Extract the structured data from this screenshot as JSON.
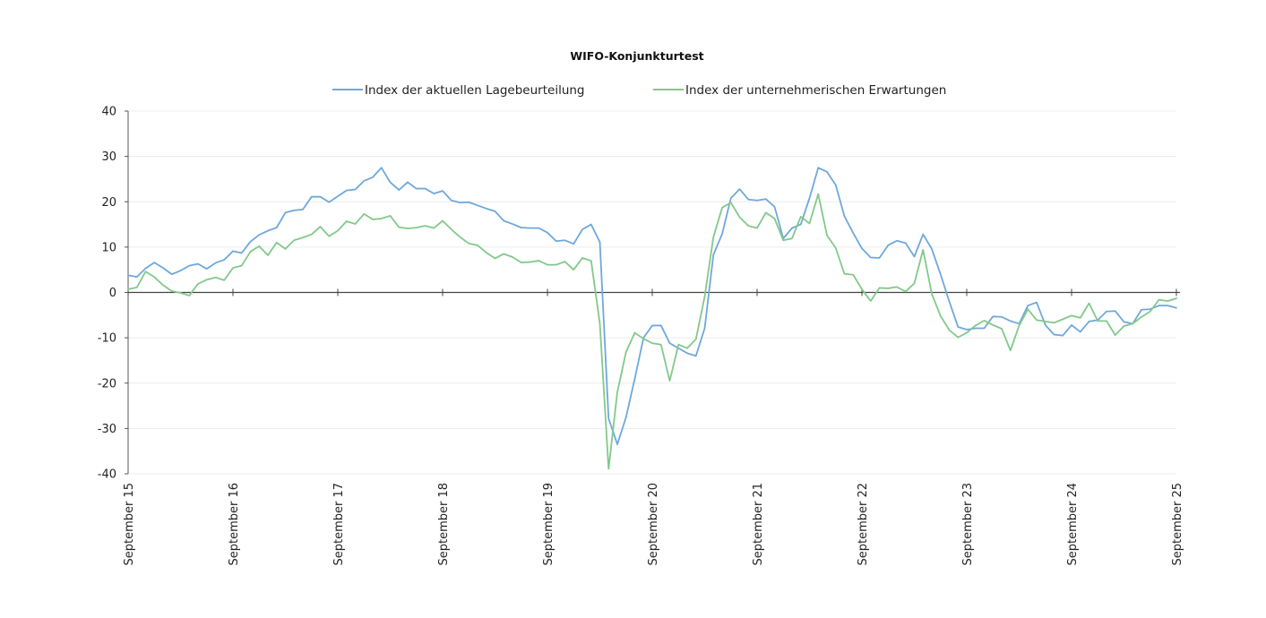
{
  "chart_data": {
    "type": "line",
    "title": "WIFO-Konjunkturtest",
    "xlabel": "",
    "ylabel": "",
    "ylim": [
      -40,
      40
    ],
    "yticks": [
      -40,
      -30,
      -20,
      -10,
      0,
      10,
      20,
      30,
      40
    ],
    "x_tick_labels": [
      "September 15",
      "September 16",
      "September 17",
      "September 18",
      "September 19",
      "September 20",
      "September 21",
      "September 22",
      "September 23",
      "September 24",
      "September 25"
    ],
    "x_tick_months": [
      0,
      12,
      24,
      36,
      48,
      60,
      72,
      84,
      96,
      108,
      120
    ],
    "legend_position": "top-center",
    "series": [
      {
        "name": "Index der aktuellen Lagebeurteilung",
        "color": "#6fa8dc",
        "values": [
          3.8,
          3.4,
          5.3,
          6.6,
          5.4,
          4.0,
          4.8,
          5.9,
          6.3,
          5.2,
          6.5,
          7.2,
          9.1,
          8.7,
          11.2,
          12.7,
          13.6,
          14.3,
          17.6,
          18.1,
          18.3,
          21.1,
          21.1,
          19.9,
          21.2,
          22.5,
          22.7,
          24.6,
          25.4,
          27.5,
          24.3,
          22.6,
          24.3,
          22.9,
          22.9,
          21.8,
          22.4,
          20.3,
          19.8,
          19.9,
          19.2,
          18.5,
          17.9,
          15.8,
          15.1,
          14.3,
          14.2,
          14.2,
          13.2,
          11.3,
          11.5,
          10.7,
          13.9,
          15.0,
          11.1,
          -27.8,
          -33.5,
          -27.5,
          -19.0,
          -10.0,
          -7.3,
          -7.3,
          -11.2,
          -12.3,
          -13.4,
          -14.0,
          -7.9,
          8.3,
          12.9,
          20.8,
          22.8,
          20.5,
          20.3,
          20.6,
          18.9,
          11.9,
          14.2,
          15.0,
          20.8,
          27.5,
          26.6,
          23.7,
          16.8,
          13.1,
          9.7,
          7.7,
          7.6,
          10.4,
          11.4,
          10.9,
          7.9,
          12.8,
          9.6,
          4.0,
          -2.0,
          -7.6,
          -8.2,
          -7.9,
          -7.9,
          -5.3,
          -5.4,
          -6.3,
          -6.9,
          -2.9,
          -2.2,
          -7.2,
          -9.3,
          -9.5,
          -7.2,
          -8.7,
          -6.4,
          -6.1,
          -4.2,
          -4.1,
          -6.5,
          -6.9,
          -3.8,
          -3.7,
          -2.9,
          -2.9,
          -3.4
        ]
      },
      {
        "name": "Index der unternehmerischen Erwartungen",
        "color": "#82c98a",
        "values": [
          0.7,
          1.1,
          4.6,
          3.4,
          1.6,
          0.3,
          -0.1,
          -0.7,
          1.9,
          2.8,
          3.3,
          2.7,
          5.4,
          5.9,
          9.0,
          10.2,
          8.2,
          11.0,
          9.6,
          11.5,
          12.1,
          12.8,
          14.5,
          12.4,
          13.6,
          15.7,
          15.1,
          17.3,
          16.1,
          16.3,
          16.9,
          14.4,
          14.1,
          14.3,
          14.7,
          14.2,
          15.8,
          13.9,
          12.2,
          10.8,
          10.4,
          8.8,
          7.5,
          8.5,
          7.8,
          6.6,
          6.7,
          7.0,
          6.1,
          6.1,
          6.8,
          5.0,
          7.6,
          7.0,
          -6.9,
          -38.9,
          -22.0,
          -13.1,
          -8.9,
          -10.2,
          -11.2,
          -11.5,
          -19.5,
          -11.5,
          -12.3,
          -10.3,
          -0.9,
          12.2,
          18.7,
          19.8,
          16.6,
          14.7,
          14.2,
          17.6,
          16.3,
          11.5,
          11.9,
          16.7,
          15.2,
          21.7,
          12.6,
          9.8,
          4.1,
          3.9,
          0.7,
          -1.9,
          1.0,
          0.9,
          1.2,
          0.2,
          2.0,
          9.4,
          -0.3,
          -5.2,
          -8.3,
          -9.9,
          -8.9,
          -7.3,
          -6.2,
          -7.2,
          -8.0,
          -12.8,
          -7.3,
          -3.7,
          -6.1,
          -6.4,
          -6.7,
          -5.9,
          -5.1,
          -5.6,
          -2.4,
          -6.3,
          -6.3,
          -9.4,
          -7.4,
          -6.9,
          -5.4,
          -4.2,
          -1.6,
          -1.9,
          -1.3
        ]
      }
    ]
  }
}
